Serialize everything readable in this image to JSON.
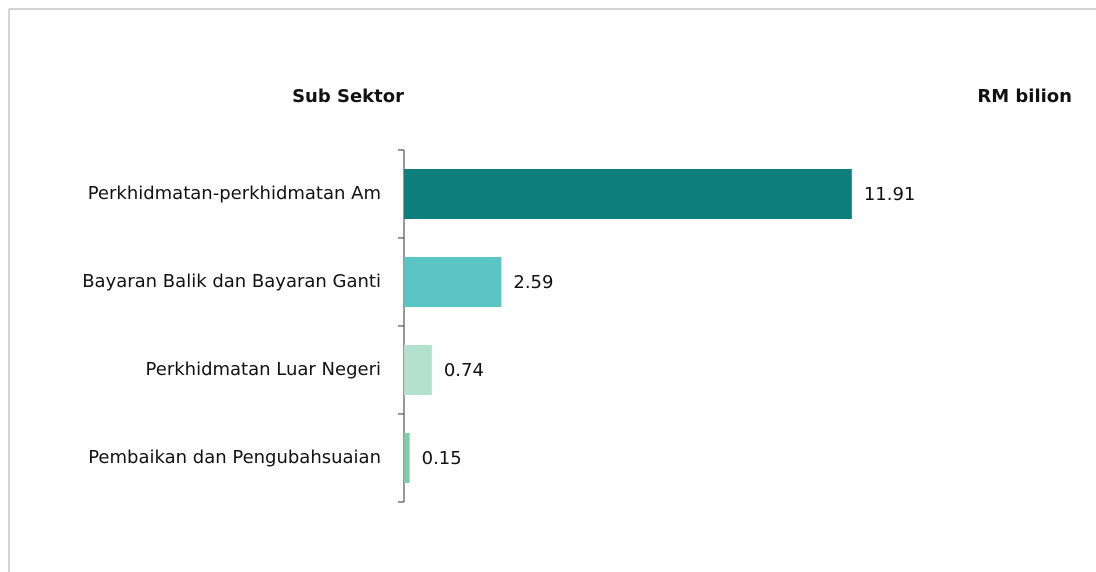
{
  "chart_data": {
    "type": "bar",
    "orientation": "horizontal",
    "category_axis_label": "Sub Sektor",
    "value_axis_label": "RM bilion",
    "categories": [
      "Perkhidmatan-perkhidmatan Am",
      "Bayaran Balik dan Bayaran Ganti",
      "Perkhidmatan Luar Negeri",
      "Pembaikan dan Pengubahsuaian"
    ],
    "values": [
      11.91,
      2.59,
      0.74,
      0.15
    ],
    "colors": [
      "#0e7f7b",
      "#5bc5c4",
      "#b4e1cd",
      "#7fcdab"
    ]
  }
}
